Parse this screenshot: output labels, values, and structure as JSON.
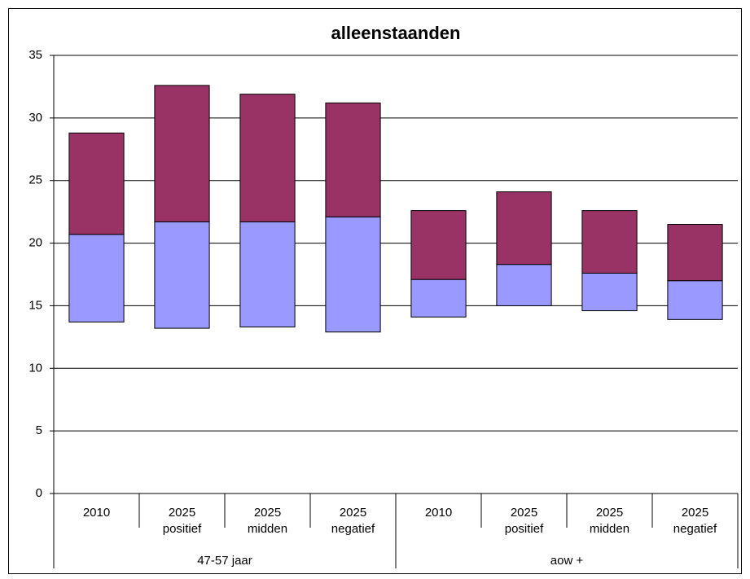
{
  "chart_data": {
    "type": "floating-bar",
    "title": "alleenstaanden",
    "categories": [
      [
        "2010"
      ],
      [
        "2025",
        "positief"
      ],
      [
        "2025",
        "midden"
      ],
      [
        "2025",
        "negatief"
      ],
      [
        "2010"
      ],
      [
        "2025",
        "positief"
      ],
      [
        "2025",
        "midden"
      ],
      [
        "2025",
        "negatief"
      ]
    ],
    "groups": [
      "47-57 jaar",
      "aow +"
    ],
    "low": [
      13.7,
      13.2,
      13.3,
      12.9,
      14.1,
      15.0,
      14.6,
      13.9
    ],
    "series": [
      {
        "color": "#9999ff",
        "values": [
          20.7,
          21.7,
          21.7,
          22.1,
          17.1,
          18.3,
          17.6,
          17.0
        ]
      },
      {
        "color": "#993366",
        "values": [
          28.8,
          32.6,
          31.9,
          31.2,
          22.6,
          24.1,
          22.6,
          21.5
        ]
      }
    ],
    "ylim": [
      0,
      35
    ],
    "yticks": [
      0,
      5,
      10,
      15,
      20,
      25,
      30,
      35
    ],
    "grid": true
  }
}
